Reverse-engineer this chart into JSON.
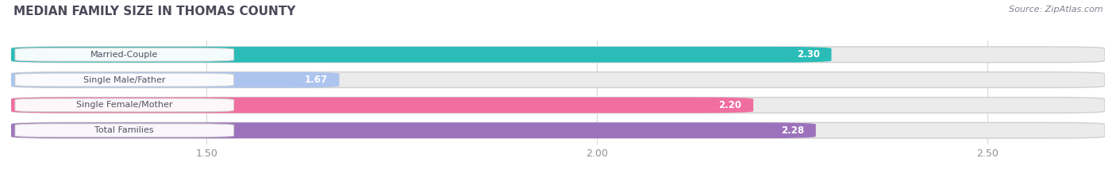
{
  "title": "MEDIAN FAMILY SIZE IN THOMAS COUNTY",
  "source": "Source: ZipAtlas.com",
  "categories": [
    "Married-Couple",
    "Single Male/Father",
    "Single Female/Mother",
    "Total Families"
  ],
  "values": [
    2.3,
    1.67,
    2.2,
    2.28
  ],
  "bar_colors": [
    "#2bbcb8",
    "#adc4ef",
    "#f06ea0",
    "#9d72bc"
  ],
  "xlim": [
    1.25,
    2.65
  ],
  "xticks": [
    1.5,
    2.0,
    2.5
  ],
  "bar_height": 0.62,
  "figsize": [
    14.06,
    2.33
  ],
  "dpi": 100,
  "bg_color": "#ffffff",
  "bar_bg_color": "#ebebeb",
  "value_label_color": "#ffffff",
  "title_color": "#4a4a5a",
  "source_color": "#808090",
  "tick_color": "#909090",
  "grid_color": "#d8d8d8",
  "label_text_color": "#505060"
}
